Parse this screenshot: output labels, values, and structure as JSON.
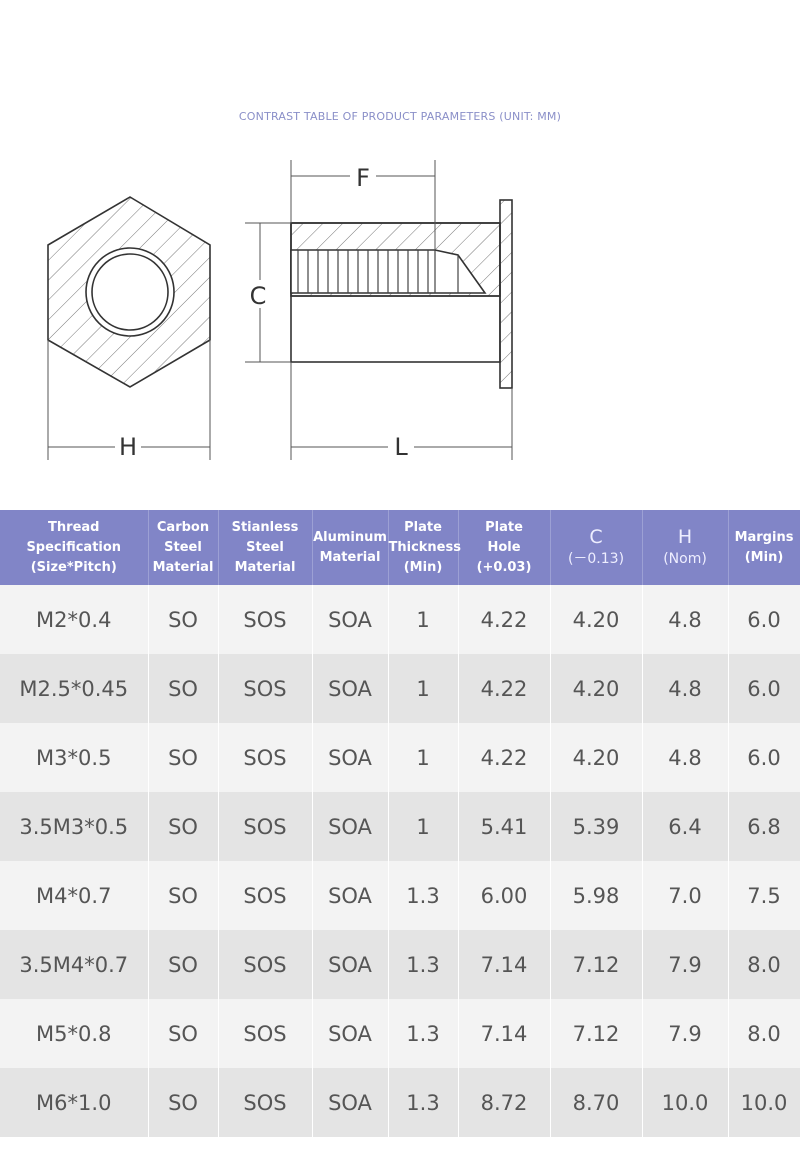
{
  "title": "CONTRAST TABLE OF PRODUCT PARAMETERS (UNIT: MM)",
  "diagram": {
    "labels": {
      "F": "F",
      "C": "C",
      "H": "H",
      "L": "L"
    }
  },
  "table": {
    "header": [
      [
        "Thread Specification",
        "(Size*Pitch)"
      ],
      [
        "Carbon",
        "Steel",
        "Material"
      ],
      [
        "Stianless",
        "Steel",
        "Material"
      ],
      [
        "Aluminum",
        "Material"
      ],
      [
        "Plate",
        "Thickness",
        "(Min)"
      ],
      [
        "Plate",
        "Hole",
        "(+0.03)"
      ],
      [
        "C",
        "(－0.13)"
      ],
      [
        "H",
        "(Nom)"
      ],
      [
        "Margins",
        "(Min)"
      ]
    ],
    "rows": [
      [
        "M2*0.4",
        "SO",
        "SOS",
        "SOA",
        "1",
        "4.22",
        "4.20",
        "4.8",
        "6.0"
      ],
      [
        "M2.5*0.45",
        "SO",
        "SOS",
        "SOA",
        "1",
        "4.22",
        "4.20",
        "4.8",
        "6.0"
      ],
      [
        "M3*0.5",
        "SO",
        "SOS",
        "SOA",
        "1",
        "4.22",
        "4.20",
        "4.8",
        "6.0"
      ],
      [
        "3.5M3*0.5",
        "SO",
        "SOS",
        "SOA",
        "1",
        "5.41",
        "5.39",
        "6.4",
        "6.8"
      ],
      [
        "M4*0.7",
        "SO",
        "SOS",
        "SOA",
        "1.3",
        "6.00",
        "5.98",
        "7.0",
        "7.5"
      ],
      [
        "3.5M4*0.7",
        "SO",
        "SOS",
        "SOA",
        "1.3",
        "7.14",
        "7.12",
        "7.9",
        "8.0"
      ],
      [
        "M5*0.8",
        "SO",
        "SOS",
        "SOA",
        "1.3",
        "7.14",
        "7.12",
        "7.9",
        "8.0"
      ],
      [
        "M6*1.0",
        "SO",
        "SOS",
        "SOA",
        "1.3",
        "8.72",
        "8.70",
        "10.0",
        "10.0"
      ]
    ]
  }
}
